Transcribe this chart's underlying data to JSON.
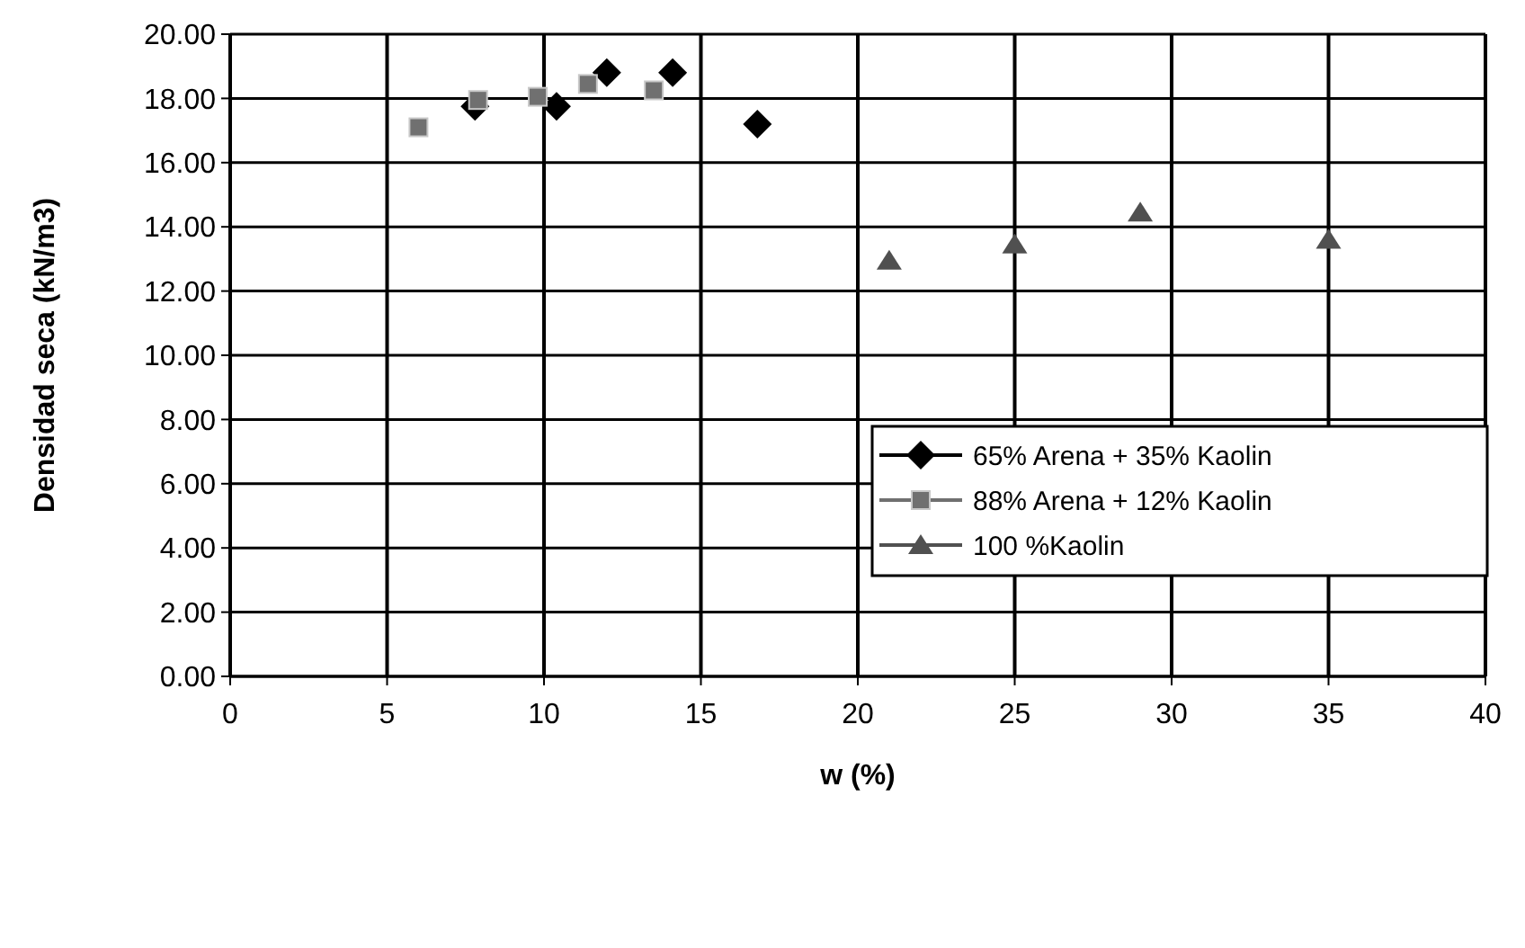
{
  "chart_data": {
    "type": "scatter",
    "xlabel": "w (%)",
    "ylabel": "Densidad seca (kN/m3)",
    "xlim": [
      0,
      40
    ],
    "xticks": [
      0,
      5,
      10,
      15,
      20,
      25,
      30,
      35,
      40
    ],
    "ylim": [
      0,
      20
    ],
    "yticks": [
      {
        "value": 0,
        "label": "0.00"
      },
      {
        "value": 2,
        "label": "2.00"
      },
      {
        "value": 4,
        "label": "4.00"
      },
      {
        "value": 6,
        "label": "6.00"
      },
      {
        "value": 8,
        "label": "8.00"
      },
      {
        "value": 10,
        "label": "10.00"
      },
      {
        "value": 12,
        "label": "12.00"
      },
      {
        "value": 14,
        "label": "14.00"
      },
      {
        "value": 16,
        "label": "16.00"
      },
      {
        "value": 18,
        "label": "18.00"
      },
      {
        "value": 20,
        "label": "20.00"
      }
    ],
    "grid": true,
    "legend": "right",
    "series": [
      {
        "name": "65% Arena + 35% Kaolin",
        "color": "#000000",
        "marker": "diamond",
        "x": [
          7.8,
          10.4,
          12.0,
          14.1,
          16.8
        ],
        "values": [
          17.75,
          17.75,
          18.8,
          18.8,
          17.2
        ]
      },
      {
        "name": "88% Arena + 12% Kaolin",
        "color": "#707070",
        "marker": "square",
        "x": [
          6.0,
          7.9,
          9.8,
          11.4,
          13.5
        ],
        "values": [
          17.1,
          17.95,
          18.05,
          18.45,
          18.25
        ]
      },
      {
        "name": "100 %Kaolin",
        "color": "#505050",
        "marker": "triangle",
        "x": [
          21.0,
          25.0,
          29.0,
          35.0
        ],
        "values": [
          12.95,
          13.45,
          14.45,
          13.6
        ]
      }
    ]
  }
}
